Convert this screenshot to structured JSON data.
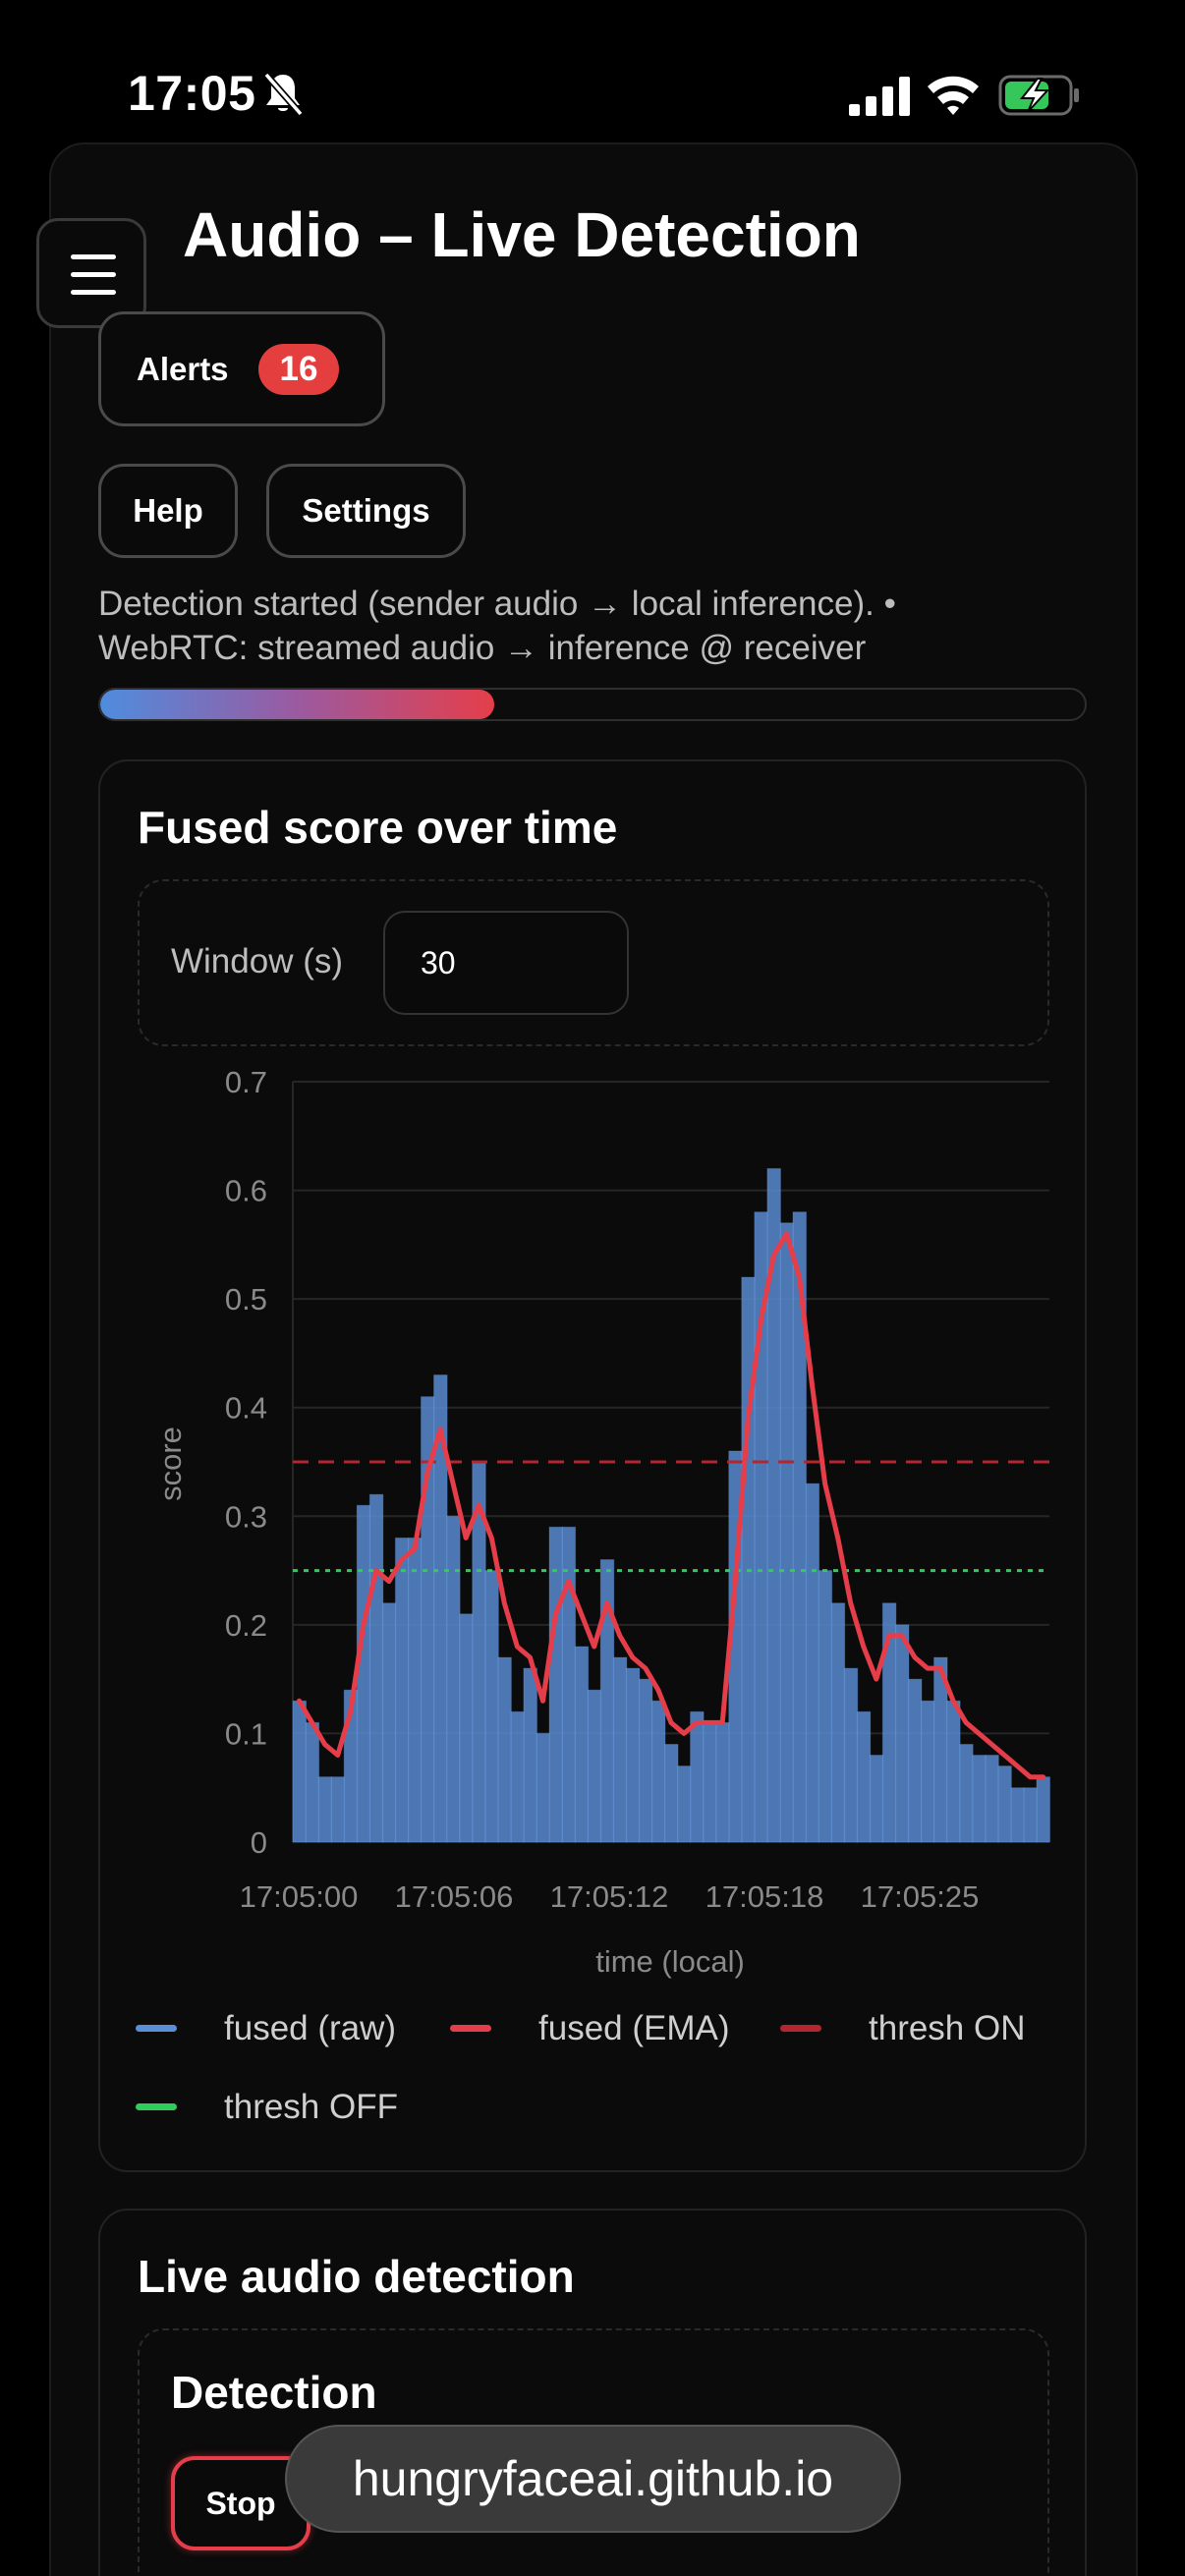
{
  "status_bar": {
    "time": "17:05"
  },
  "header": {
    "title": "Audio – Live Detection"
  },
  "buttons": {
    "alerts_label": "Alerts",
    "alerts_count": "16",
    "help_label": "Help",
    "settings_label": "Settings"
  },
  "status": {
    "line1": "Detection started (sender audio → local inference). •",
    "line2": "WebRTC: streamed audio → inference @ receiver",
    "progress": 0.4
  },
  "chart_panel": {
    "title": "Fused score over time",
    "window_label": "Window (s)",
    "window_value": "30"
  },
  "chart_data": {
    "type": "bar",
    "xlabel": "time (local)",
    "ylabel": "score",
    "ylim": [
      0,
      0.7
    ],
    "yticks": [
      "0",
      "0.1",
      "0.2",
      "0.3",
      "0.4",
      "0.5",
      "0.6",
      "0.7"
    ],
    "xticks": [
      "17:05:00",
      "17:05:06",
      "17:05:12",
      "17:05:18",
      "17:05:25"
    ],
    "grid": true,
    "legend_position": "bottom",
    "colors": {
      "raw": "#5a8fd8",
      "ema": "#e53e4a",
      "thresh_on": "#b3262e",
      "thresh_off": "#2ecc5a"
    },
    "series": [
      {
        "name": "fused (raw)",
        "values": [
          0.13,
          0.11,
          0.06,
          0.06,
          0.14,
          0.31,
          0.32,
          0.22,
          0.28,
          0.28,
          0.41,
          0.43,
          0.3,
          0.21,
          0.35,
          0.25,
          0.17,
          0.12,
          0.16,
          0.1,
          0.29,
          0.29,
          0.18,
          0.14,
          0.26,
          0.17,
          0.16,
          0.15,
          0.13,
          0.09,
          0.07,
          0.12,
          0.11,
          0.11,
          0.36,
          0.52,
          0.58,
          0.62,
          0.57,
          0.58,
          0.33,
          0.25,
          0.22,
          0.16,
          0.12,
          0.08,
          0.22,
          0.2,
          0.15,
          0.13,
          0.17,
          0.13,
          0.09,
          0.08,
          0.08,
          0.07,
          0.05,
          0.05,
          0.06
        ]
      },
      {
        "name": "fused (EMA)",
        "values": [
          0.13,
          0.11,
          0.09,
          0.08,
          0.12,
          0.2,
          0.25,
          0.24,
          0.26,
          0.27,
          0.34,
          0.38,
          0.33,
          0.28,
          0.31,
          0.28,
          0.22,
          0.18,
          0.17,
          0.13,
          0.21,
          0.24,
          0.21,
          0.18,
          0.22,
          0.19,
          0.17,
          0.16,
          0.14,
          0.11,
          0.1,
          0.11,
          0.11,
          0.11,
          0.24,
          0.39,
          0.48,
          0.54,
          0.56,
          0.52,
          0.42,
          0.33,
          0.28,
          0.22,
          0.18,
          0.15,
          0.19,
          0.19,
          0.17,
          0.16,
          0.16,
          0.13,
          0.11,
          0.1,
          0.09,
          0.08,
          0.07,
          0.06,
          0.06
        ]
      },
      {
        "name": "thresh ON",
        "value": 0.35
      },
      {
        "name": "thresh OFF",
        "value": 0.25
      }
    ]
  },
  "detect_panel": {
    "title": "Live audio detection",
    "subtitle": "Detection",
    "stop_label": "Stop"
  },
  "browser": {
    "url": "hungryfaceai.github.io"
  },
  "icons": {
    "mute": "bell-slash-icon",
    "signal": "signal-icon",
    "wifi": "wifi-icon",
    "battery": "battery-charging-icon",
    "menu": "hamburger-menu-icon"
  }
}
